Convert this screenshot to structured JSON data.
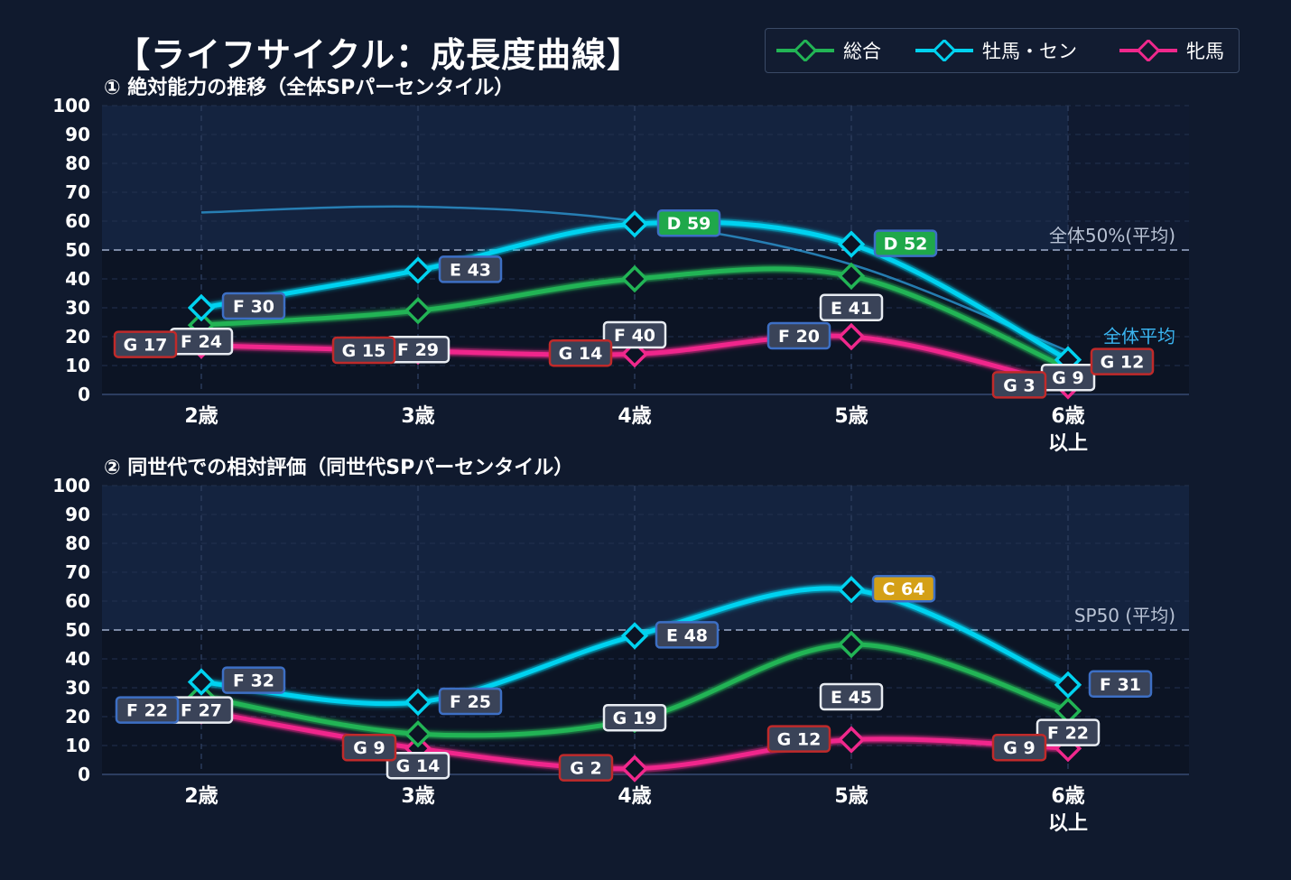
{
  "title": "【ライフサイクル：成長度曲線】",
  "colors": {
    "total": "#22b455",
    "male": "#00d2f0",
    "female": "#f0288c",
    "avg_line": "#2a8ec8",
    "grade_C": "#d4a017",
    "grade_D": "#1fa84a",
    "grade_E": "#3d6fc4",
    "grade_F": "#3d6fc4",
    "grade_G": "#c02a2a"
  },
  "legend": [
    {
      "key": "total",
      "label": "総合"
    },
    {
      "key": "male",
      "label": "牡馬・セン"
    },
    {
      "key": "female",
      "label": "牝馬"
    }
  ],
  "chart_data": [
    {
      "type": "line",
      "title": "① 絶対能力の推移（全体SPパーセンタイル）",
      "categories": [
        "2歳",
        "3歳",
        "4歳",
        "5歳",
        "6歳\n以上"
      ],
      "ylim": [
        0,
        100
      ],
      "yticks": [
        0,
        10,
        20,
        30,
        40,
        50,
        60,
        70,
        80,
        90,
        100
      ],
      "reference_line": {
        "value": 50,
        "label": "全体50%(平均)"
      },
      "average_curve": {
        "label": "全体平均",
        "values": [
          63,
          65,
          60,
          45,
          15
        ]
      },
      "series": [
        {
          "key": "total",
          "name": "総合",
          "values": [
            24,
            29,
            40,
            41,
            9
          ],
          "labels": [
            "F 24",
            "F 29",
            "F 40",
            "E 41",
            "G 9"
          ]
        },
        {
          "key": "male",
          "name": "牡馬・セン",
          "values": [
            30,
            43,
            59,
            52,
            12
          ],
          "labels": [
            "F 30",
            "E 43",
            "D 59",
            "D 52",
            "G 12"
          ]
        },
        {
          "key": "female",
          "name": "牝馬",
          "values": [
            17,
            15,
            14,
            20,
            3
          ],
          "labels": [
            "G 17",
            "G 15",
            "G 14",
            "F 20",
            "G 3"
          ]
        }
      ]
    },
    {
      "type": "line",
      "title": "② 同世代での相対評価（同世代SPパーセンタイル）",
      "categories": [
        "2歳",
        "3歳",
        "4歳",
        "5歳",
        "6歳\n以上"
      ],
      "ylim": [
        0,
        100
      ],
      "yticks": [
        0,
        10,
        20,
        30,
        40,
        50,
        60,
        70,
        80,
        90,
        100
      ],
      "reference_line": {
        "value": 50,
        "label": "SP50 (平均)"
      },
      "series": [
        {
          "key": "total",
          "name": "総合",
          "values": [
            27,
            14,
            19,
            45,
            22
          ],
          "labels": [
            "F 27",
            "G 14",
            "G 19",
            "E 45",
            "F 22"
          ]
        },
        {
          "key": "male",
          "name": "牡馬・セン",
          "values": [
            32,
            25,
            48,
            64,
            31
          ],
          "labels": [
            "F 32",
            "F 25",
            "E 48",
            "C 64",
            "F 31"
          ]
        },
        {
          "key": "female",
          "name": "牝馬",
          "values": [
            22,
            9,
            2,
            12,
            9
          ],
          "labels": [
            "F 22",
            "G 9",
            "G 2",
            "G 12",
            "G 9"
          ]
        }
      ]
    }
  ]
}
